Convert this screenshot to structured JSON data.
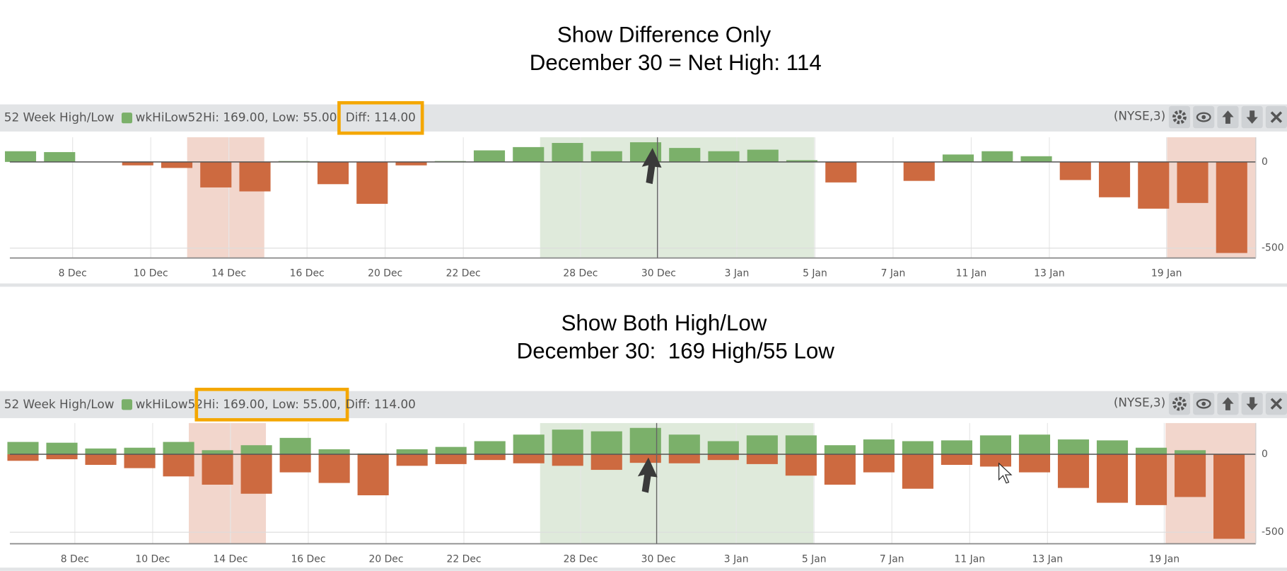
{
  "chart_data": [
    {
      "type": "bar",
      "title": "Show Difference Only",
      "subtitle": "December 30 = Net High: 114",
      "panel_title": "52 Week High/Low",
      "readout": [
        "Hi: 169.00, Low: 55.00,",
        "Diff: 114.00"
      ],
      "highlight": 1,
      "exchange": "(NYSE,3)",
      "categories": [
        null,
        "8 Dec",
        null,
        "10 Dec",
        null,
        "14 Dec",
        null,
        "16 Dec",
        null,
        "20 Dec",
        null,
        "22 Dec",
        null,
        null,
        "28 Dec",
        null,
        "30 Dec",
        null,
        "3 Jan",
        null,
        "5 Jan",
        null,
        "7 Jan",
        null,
        "11 Jan",
        null,
        "13 Jan",
        null,
        null,
        "19 Jan",
        null,
        null
      ],
      "series": [
        {
          "name": "wkHiLow52",
          "color": "#7bb06a",
          "negative_color": "#cd6a40",
          "values": [
            62,
            57,
            null,
            -20,
            -35,
            -148,
            -171,
            5,
            -129,
            -243,
            -20,
            5,
            67,
            86,
            110,
            62,
            114,
            81,
            62,
            71,
            10,
            -119,
            null,
            -110,
            43,
            62,
            33,
            -105,
            -205,
            -271,
            -238,
            -528
          ]
        }
      ],
      "ylim": [
        -557,
        143
      ],
      "yticks": [
        0,
        -500
      ],
      "grid": true
    },
    {
      "type": "bar",
      "title": "Show Both High/Low",
      "subtitle": "December 30:  169 High/55 Low",
      "panel_title": "52 Week High/Low",
      "readout": [
        "Hi: 169.00, Low: 55.00,",
        "Diff: 114.00"
      ],
      "highlight": 0,
      "exchange": "(NYSE,3)",
      "categories": [
        null,
        "8 Dec",
        null,
        "10 Dec",
        null,
        "14 Dec",
        null,
        "16 Dec",
        null,
        "20 Dec",
        null,
        "22 Dec",
        null,
        null,
        "28 Dec",
        null,
        "30 Dec",
        null,
        "3 Jan",
        null,
        "5 Jan",
        null,
        "7 Jan",
        null,
        "11 Jan",
        null,
        "13 Jan",
        null,
        null,
        "19 Jan",
        null,
        null
      ],
      "series": [
        {
          "name": "wkHiLow52",
          "color": "#7bb06a",
          "values": [
            79,
            74,
            37,
            42,
            79,
            26,
            58,
            105,
            32,
            5,
            32,
            47,
            84,
            126,
            158,
            147,
            169,
            126,
            84,
            121,
            121,
            58,
            95,
            84,
            89,
            121,
            126,
            95,
            89,
            42,
            26,
            0
          ]
        },
        {
          "color": "#cd6a40",
          "values": [
            -42,
            -32,
            -68,
            -89,
            -142,
            -195,
            -253,
            -116,
            -184,
            -263,
            -74,
            -63,
            -37,
            -58,
            -74,
            -100,
            -55,
            -58,
            -37,
            -63,
            -137,
            -195,
            -116,
            -221,
            -68,
            -79,
            -116,
            -216,
            -311,
            -326,
            -274,
            -542
          ]
        }
      ],
      "ylim": [
        -574,
        200
      ],
      "yticks": [
        0,
        -500
      ],
      "grid": true
    }
  ]
}
